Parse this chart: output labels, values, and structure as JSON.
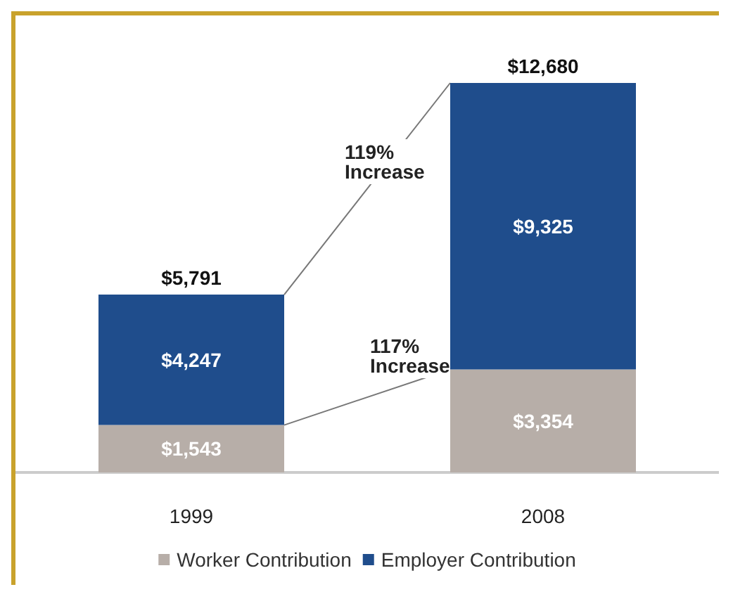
{
  "chart_data": {
    "type": "bar",
    "stacked": true,
    "categories": [
      "1999",
      "2008"
    ],
    "series": [
      {
        "name": "Worker Contribution",
        "color": "#b7aea8",
        "values": [
          1543,
          3354
        ],
        "value_labels": [
          "$1,543",
          "$3,354"
        ]
      },
      {
        "name": "Employer Contribution",
        "color": "#1f4d8c",
        "values": [
          4247,
          9325
        ],
        "value_labels": [
          "$4,247",
          "$9,325"
        ]
      }
    ],
    "totals": [
      "$5,791",
      "$12,680"
    ],
    "annotations": [
      "119%\nIncrease",
      "117%\nIncrease"
    ],
    "legend": "bottom"
  }
}
